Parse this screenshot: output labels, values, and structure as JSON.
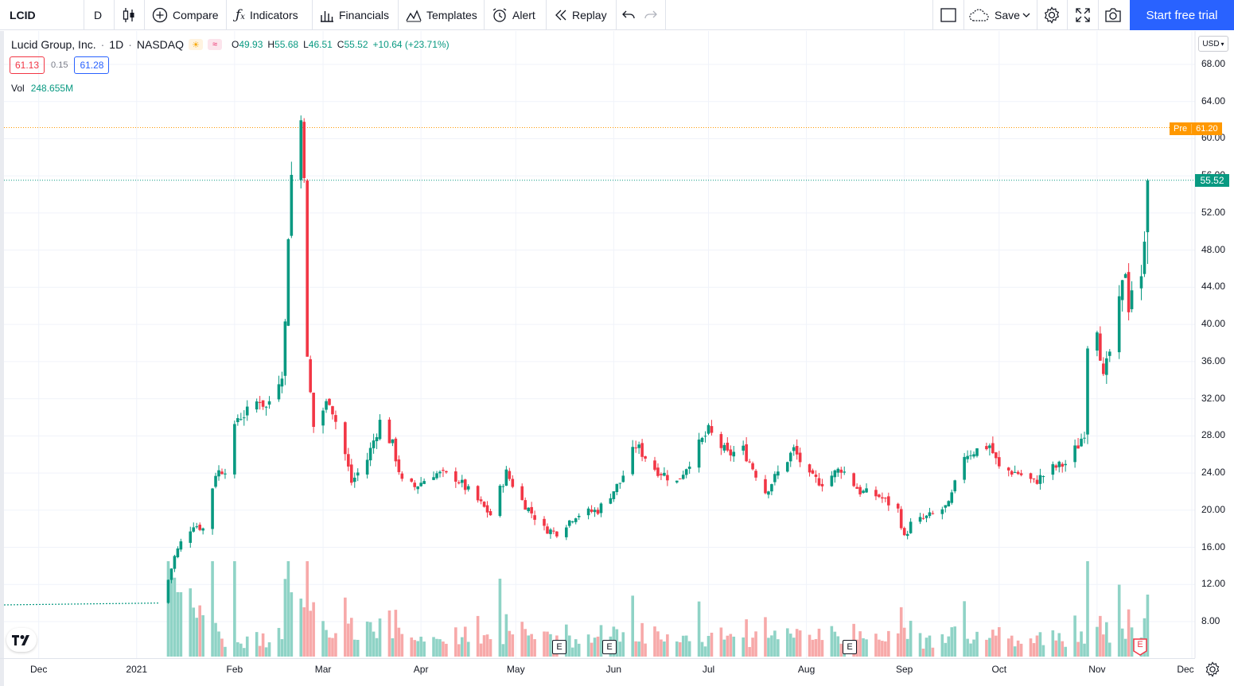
{
  "toolbar": {
    "symbol": "LCID",
    "interval": "D",
    "compare_label": "Compare",
    "indicators_label": "Indicators",
    "financials_label": "Financials",
    "templates_label": "Templates",
    "alert_label": "Alert",
    "replay_label": "Replay",
    "save_label": "Save",
    "trial_label": "Start free trial"
  },
  "legend": {
    "name": "Lucid Group, Inc.",
    "interval": "1D",
    "exchange": "NASDAQ",
    "open_key": "O",
    "open": "49.93",
    "high_key": "H",
    "high": "55.68",
    "low_key": "L",
    "low": "46.51",
    "close_key": "C",
    "close": "55.52",
    "change": "+10.64 (+23.71%)",
    "bid": "61.13",
    "spread": "0.15",
    "ask": "61.28",
    "vol_label": "Vol",
    "vol_value": "248.655M"
  },
  "price_axis": {
    "currency": "USD",
    "labels": [
      "68.00",
      "64.00",
      "60.00",
      "56.00",
      "52.00",
      "48.00",
      "44.00",
      "40.00",
      "36.00",
      "32.00",
      "28.00",
      "24.00",
      "20.00",
      "16.00",
      "12.00",
      "8.00"
    ],
    "pre_label": "Pre",
    "pre_value": "61.20",
    "last_value": "55.52"
  },
  "time_axis": {
    "labels": [
      "Dec",
      "2021",
      "Feb",
      "Mar",
      "Apr",
      "May",
      "Jun",
      "Jul",
      "Aug",
      "Sep",
      "Oct",
      "Nov",
      "Dec"
    ]
  },
  "earnings_label": "E",
  "colors": {
    "up": "#089981",
    "down": "#f23645",
    "up_vol": "#8fd3c6",
    "down_vol": "#f7a9a9",
    "accent": "#2962ff",
    "pre": "#ff9800"
  },
  "chart_data": {
    "type": "candlestick",
    "title": "Lucid Group, Inc. · 1D · NASDAQ",
    "ylim": [
      4.5,
      70
    ],
    "x_range": [
      "2020-11-20",
      "2021-12-02"
    ],
    "pre_market_price": 61.2,
    "last_price": 55.52,
    "pre_spac_line": {
      "from": "2020-11-20",
      "to": "2021-01-08",
      "start": 9.8,
      "end": 10.0
    },
    "waypoints": [
      [
        "2021-01-11",
        12.5
      ],
      [
        "2021-01-13",
        15.0
      ],
      [
        "2021-01-15",
        16.5
      ],
      [
        "2021-01-19",
        18.5
      ],
      [
        "2021-01-22",
        18.0
      ],
      [
        "2021-01-26",
        24.0
      ],
      [
        "2021-01-29",
        24.5
      ],
      [
        "2021-02-02",
        30.0
      ],
      [
        "2021-02-05",
        30.5
      ],
      [
        "2021-02-09",
        32.0
      ],
      [
        "2021-02-11",
        31.0
      ],
      [
        "2021-02-16",
        35.0
      ],
      [
        "2021-02-17",
        40.0
      ],
      [
        "2021-02-18",
        50.0
      ],
      [
        "2021-02-19",
        56.0
      ],
      [
        "2021-02-22",
        62.0
      ],
      [
        "2021-02-23",
        57.0
      ],
      [
        "2021-02-24",
        36.0
      ],
      [
        "2021-02-26",
        29.0
      ],
      [
        "2021-03-03",
        32.0
      ],
      [
        "2021-03-08",
        26.0
      ],
      [
        "2021-03-10",
        23.0
      ],
      [
        "2021-03-15",
        25.5
      ],
      [
        "2021-03-19",
        29.5
      ],
      [
        "2021-03-23",
        27.0
      ],
      [
        "2021-03-26",
        23.0
      ],
      [
        "2021-03-30",
        22.5
      ],
      [
        "2021-04-05",
        24.0
      ],
      [
        "2021-04-12",
        23.5
      ],
      [
        "2021-04-19",
        21.0
      ],
      [
        "2021-04-23",
        19.5
      ],
      [
        "2021-04-28",
        24.0
      ],
      [
        "2021-05-03",
        21.0
      ],
      [
        "2021-05-10",
        18.0
      ],
      [
        "2021-05-14",
        17.6
      ],
      [
        "2021-05-20",
        19.5
      ],
      [
        "2021-05-27",
        20.0
      ],
      [
        "2021-06-03",
        23.0
      ],
      [
        "2021-06-08",
        27.0
      ],
      [
        "2021-06-14",
        24.5
      ],
      [
        "2021-06-21",
        23.0
      ],
      [
        "2021-06-28",
        27.0
      ],
      [
        "2021-07-01",
        28.5
      ],
      [
        "2021-07-07",
        26.0
      ],
      [
        "2021-07-12",
        26.5
      ],
      [
        "2021-07-19",
        22.0
      ],
      [
        "2021-07-23",
        24.0
      ],
      [
        "2021-07-28",
        26.5
      ],
      [
        "2021-08-02",
        23.5
      ],
      [
        "2021-08-06",
        23.0
      ],
      [
        "2021-08-12",
        24.5
      ],
      [
        "2021-08-18",
        22.0
      ],
      [
        "2021-08-24",
        21.5
      ],
      [
        "2021-08-30",
        20.0
      ],
      [
        "2021-09-01",
        17.0
      ],
      [
        "2021-09-03",
        18.5
      ],
      [
        "2021-09-10",
        19.5
      ],
      [
        "2021-09-15",
        20.5
      ],
      [
        "2021-09-20",
        26.0
      ],
      [
        "2021-09-24",
        26.5
      ],
      [
        "2021-09-28",
        27.0
      ],
      [
        "2021-10-01",
        24.5
      ],
      [
        "2021-10-07",
        24.0
      ],
      [
        "2021-10-12",
        23.0
      ],
      [
        "2021-10-18",
        24.5
      ],
      [
        "2021-10-22",
        25.0
      ],
      [
        "2021-10-26",
        27.0
      ],
      [
        "2021-10-28",
        28.5
      ],
      [
        "2021-10-29",
        38.0
      ],
      [
        "2021-11-01",
        40.0
      ],
      [
        "2021-11-03",
        34.0
      ],
      [
        "2021-11-05",
        37.0
      ],
      [
        "2021-11-08",
        42.0
      ],
      [
        "2021-11-10",
        46.0
      ],
      [
        "2021-11-11",
        42.0
      ],
      [
        "2021-11-12",
        44.0
      ],
      [
        "2021-11-15",
        44.5
      ],
      [
        "2021-11-16",
        49.93
      ]
    ],
    "last_candle": {
      "date": "2021-11-17",
      "open": 49.93,
      "high": 55.68,
      "low": 46.51,
      "close": 55.52
    },
    "volume_scale_millions": 248.655,
    "earnings_dates": [
      "2021-05-24",
      "2021-06-07",
      "2021-08-16",
      "2021-11-15"
    ],
    "grid": true
  }
}
